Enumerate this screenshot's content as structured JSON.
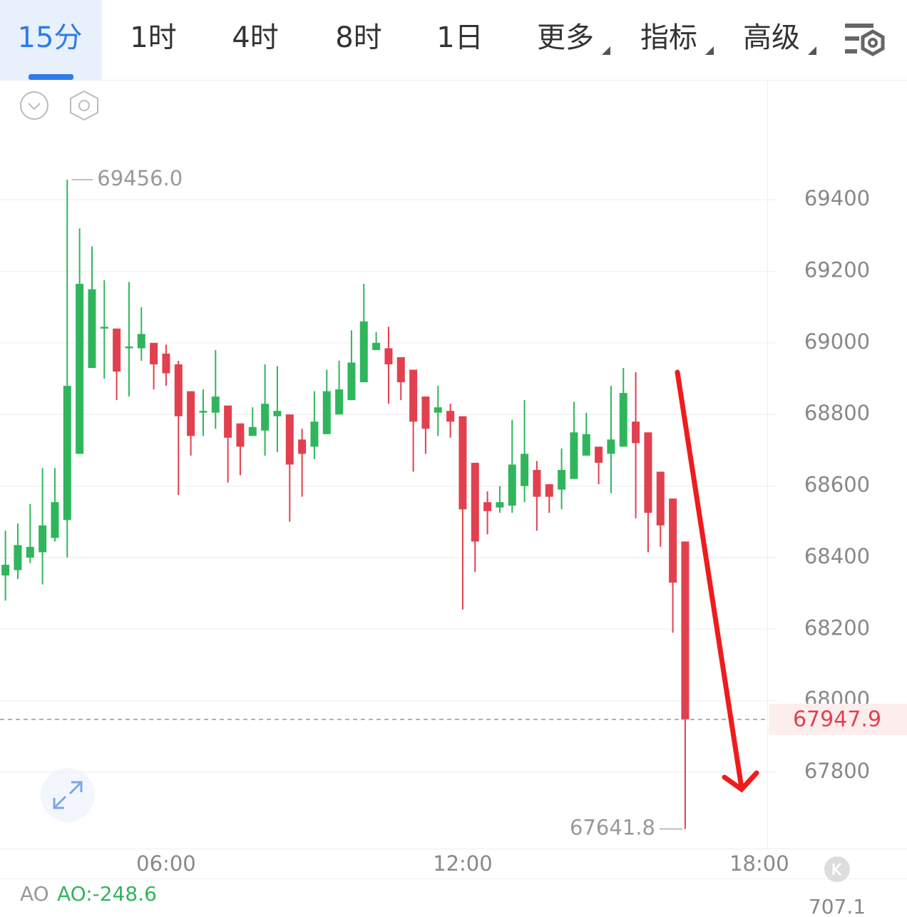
{
  "toolbar": {
    "tabs": [
      "15分",
      "1时",
      "4时",
      "8时",
      "1日",
      "更多",
      "指标",
      "高级"
    ],
    "active": 0
  },
  "chart_data": {
    "type": "candlestick",
    "x": [
      2.75,
      3,
      3.25,
      3.5,
      3.75,
      4,
      4.25,
      4.5,
      4.75,
      5,
      5.25,
      5.5,
      5.75,
      6,
      6.25,
      6.5,
      6.75,
      7,
      7.25,
      7.5,
      7.75,
      8,
      8.25,
      8.5,
      8.75,
      9,
      9.25,
      9.5,
      9.75,
      10,
      10.25,
      10.5,
      10.75,
      11,
      11.25,
      11.5,
      11.75,
      12,
      12.25,
      12.5,
      12.75,
      13,
      13.25,
      13.5,
      13.75,
      14,
      14.25,
      14.5,
      14.75,
      15,
      15.25,
      15.5,
      15.75,
      16,
      16.25,
      16.5
    ],
    "open": [
      68350,
      68365,
      68400,
      68415,
      68455,
      68505,
      68690,
      68930,
      69040,
      69040,
      68985,
      68985,
      69000,
      68970,
      68940,
      68865,
      68805,
      68805,
      68825,
      68775,
      68740,
      68755,
      68795,
      68800,
      68730,
      68710,
      68745,
      68800,
      68840,
      68890,
      68980,
      68985,
      68960,
      68925,
      68850,
      68805,
      68810,
      68795,
      68665,
      68555,
      68540,
      68545,
      68600,
      68645,
      68605,
      68590,
      68620,
      68685,
      68710,
      68690,
      68710,
      68780,
      68750,
      68640,
      68565,
      68445
    ],
    "high": [
      68475,
      68495,
      68550,
      68650,
      68650,
      69456,
      69320,
      69270,
      69175,
      69040,
      69170,
      69100,
      69000,
      68995,
      68950,
      68865,
      68870,
      68980,
      68825,
      68775,
      68820,
      68940,
      68935,
      68800,
      68760,
      68865,
      68925,
      68950,
      69035,
      69165,
      69030,
      69045,
      68960,
      68925,
      68850,
      68880,
      68830,
      68795,
      68665,
      68585,
      68600,
      68785,
      68840,
      68670,
      68605,
      68705,
      68835,
      68805,
      68710,
      68880,
      68930,
      68918,
      68750,
      68640,
      68565,
      68445
    ],
    "low": [
      68280,
      68340,
      68385,
      68325,
      68445,
      68400,
      68690,
      68930,
      68900,
      68840,
      68850,
      68950,
      68870,
      68880,
      68575,
      68685,
      68740,
      68760,
      68610,
      68630,
      68740,
      68685,
      68695,
      68500,
      68570,
      68675,
      68745,
      68800,
      68840,
      68890,
      68980,
      68830,
      68840,
      68640,
      68690,
      68740,
      68735,
      68255,
      68360,
      68465,
      68525,
      68525,
      68555,
      68475,
      68525,
      68535,
      68620,
      68685,
      68605,
      68580,
      68710,
      68510,
      68415,
      68430,
      68190,
      67641.8
    ],
    "close": [
      68380,
      68435,
      68430,
      68490,
      68555,
      68880,
      69165,
      69150,
      69045,
      68920,
      68990,
      69025,
      68940,
      68915,
      68795,
      68740,
      68810,
      68850,
      68735,
      68710,
      68765,
      68830,
      68810,
      68660,
      68690,
      68780,
      68865,
      68870,
      68945,
      69060,
      69000,
      68940,
      68890,
      68780,
      68760,
      68820,
      68780,
      68535,
      68445,
      68530,
      68555,
      68660,
      68690,
      68570,
      68570,
      68645,
      68750,
      68745,
      68665,
      68730,
      68860,
      68720,
      68525,
      68490,
      68330,
      67947.9
    ],
    "up_color": "#2fb65c",
    "down_color": "#e2404f",
    "xlim": [
      2.64,
      18.16
    ],
    "xticks": [
      {
        "value": 6,
        "label": "06:00"
      },
      {
        "value": 12,
        "label": "12:00"
      },
      {
        "value": 18,
        "label": "18:00"
      }
    ],
    "ylim": [
      67587,
      69733
    ],
    "yticks": [
      67800,
      68000,
      68200,
      68400,
      68600,
      68800,
      69000,
      69200,
      69400
    ],
    "grid": true,
    "current_price": 67947.9,
    "annotations": [
      {
        "x": 4,
        "y": 69456,
        "label": "69456.0"
      },
      {
        "x": 16.5,
        "y": 67641.8,
        "label": "67641.8"
      }
    ]
  },
  "indicator": {
    "name": "AO",
    "value_label": "AO:-248.6",
    "axis_label": "707.1"
  }
}
